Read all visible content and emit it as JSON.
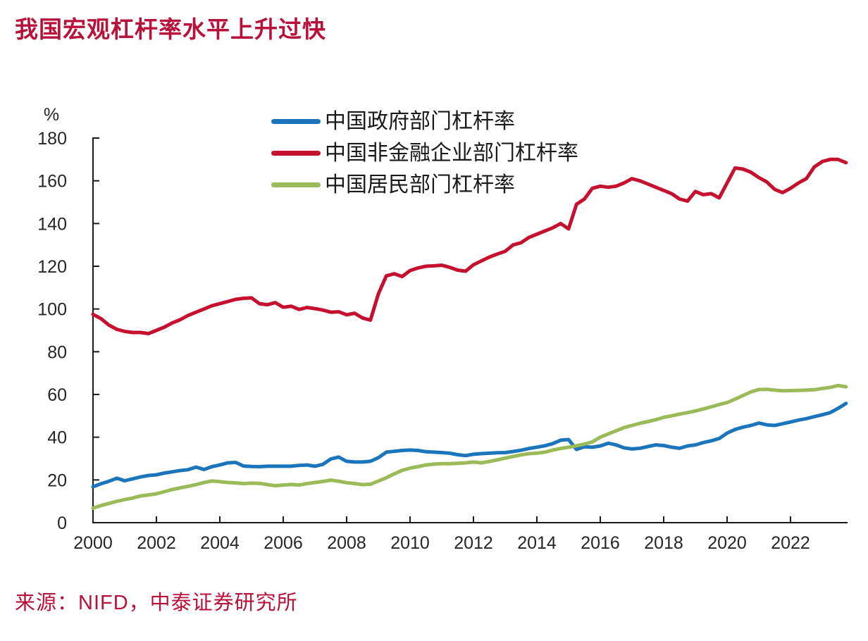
{
  "title": "我国宏观杠杆率水平上升过快",
  "source": "来源：NIFD，中泰证券研究所",
  "colors": {
    "title": "#B8123A",
    "source": "#B8123A",
    "axis": "#1a1a1a",
    "tick_label": "#262626",
    "legend_text": "#1a1a1a",
    "background": "#ffffff"
  },
  "chart_data": {
    "type": "line",
    "title": "我国宏观杠杆率水平上升过快",
    "xlabel": "",
    "ylabel": "%",
    "grid": false,
    "legend_position": "top-center",
    "ylim": [
      0,
      180
    ],
    "xlim": [
      2000,
      2023.75
    ],
    "y_ticks": [
      0,
      20,
      40,
      60,
      80,
      100,
      120,
      140,
      160,
      180
    ],
    "x_ticks": [
      2000,
      2002,
      2004,
      2006,
      2008,
      2010,
      2012,
      2014,
      2016,
      2018,
      2020,
      2022
    ],
    "x_start": 2000,
    "x_step": 0.25,
    "x_unit": "year (quarterly)",
    "series": [
      {
        "name": "中国政府部门杠杆率",
        "color": "#1B75BC",
        "values": [
          16.8,
          18.2,
          19.4,
          20.8,
          19.6,
          20.5,
          21.4,
          22.1,
          22.4,
          23.2,
          23.8,
          24.4,
          24.8,
          26.0,
          24.9,
          26.2,
          27.0,
          28.0,
          28.2,
          26.5,
          26.3,
          26.2,
          26.4,
          26.4,
          26.4,
          26.4,
          26.8,
          27.0,
          26.4,
          27.3,
          29.8,
          30.7,
          28.7,
          28.4,
          28.4,
          28.7,
          30.4,
          33.0,
          33.4,
          33.8,
          34.0,
          33.8,
          33.2,
          33.0,
          32.8,
          32.5,
          31.8,
          31.4,
          32.0,
          32.3,
          32.5,
          32.7,
          32.8,
          33.3,
          33.9,
          34.7,
          35.3,
          36.0,
          37.0,
          38.6,
          38.9,
          34.3,
          35.5,
          35.3,
          35.9,
          37.2,
          36.4,
          35.0,
          34.5,
          34.8,
          35.6,
          36.4,
          36.1,
          35.3,
          34.8,
          35.9,
          36.4,
          37.5,
          38.3,
          39.4,
          41.9,
          43.6,
          44.7,
          45.5,
          46.6,
          45.8,
          45.5,
          46.3,
          47.1,
          48.0,
          48.7,
          49.6,
          50.5,
          51.5,
          53.5,
          55.8
        ]
      },
      {
        "name": "中国非金融企业部门杠杆率",
        "color": "#C5112F",
        "values": [
          97.5,
          95.5,
          92.5,
          90.5,
          89.5,
          89.0,
          89.0,
          88.5,
          90.0,
          91.5,
          93.5,
          95.0,
          97.0,
          98.5,
          100.0,
          101.5,
          102.5,
          103.5,
          104.5,
          105.0,
          105.2,
          102.5,
          102.0,
          103.0,
          100.8,
          101.3,
          99.8,
          100.7,
          100.2,
          99.5,
          98.5,
          98.7,
          97.3,
          98.0,
          95.8,
          94.8,
          107.0,
          115.5,
          116.5,
          115.2,
          118.0,
          119.2,
          120.0,
          120.2,
          120.5,
          119.5,
          118.2,
          117.7,
          120.7,
          122.5,
          124.3,
          125.7,
          127.0,
          130.0,
          131.0,
          133.5,
          135.0,
          136.5,
          138.0,
          140.0,
          137.5,
          149.0,
          151.5,
          156.5,
          157.5,
          157.0,
          157.5,
          159.0,
          161.0,
          160.0,
          158.5,
          157.0,
          155.5,
          154.0,
          151.5,
          150.5,
          155.0,
          153.5,
          154.0,
          152.0,
          159.0,
          166.0,
          165.5,
          164.0,
          161.5,
          159.5,
          156.0,
          154.5,
          156.5,
          159.0,
          161.0,
          166.5,
          169.0,
          170.0,
          170.0,
          168.5
        ]
      },
      {
        "name": "中国居民部门杠杆率",
        "color": "#9BBA58",
        "values": [
          6.8,
          8.0,
          9.0,
          10.0,
          10.8,
          11.5,
          12.5,
          13.0,
          13.5,
          14.5,
          15.5,
          16.3,
          17.0,
          17.8,
          18.8,
          19.5,
          19.2,
          18.8,
          18.6,
          18.3,
          18.5,
          18.4,
          17.8,
          17.3,
          17.6,
          17.9,
          17.6,
          18.3,
          18.8,
          19.3,
          19.9,
          19.4,
          18.7,
          18.3,
          17.8,
          18.0,
          19.5,
          21.0,
          22.8,
          24.5,
          25.5,
          26.2,
          27.0,
          27.4,
          27.6,
          27.6,
          27.8,
          28.0,
          28.4,
          28.0,
          28.6,
          29.4,
          30.2,
          31.0,
          31.7,
          32.3,
          32.5,
          33.0,
          34.0,
          34.7,
          35.3,
          36.0,
          36.8,
          37.8,
          40.0,
          41.5,
          43.0,
          44.5,
          45.5,
          46.5,
          47.3,
          48.2,
          49.3,
          50.0,
          50.8,
          51.5,
          52.3,
          53.2,
          54.2,
          55.3,
          56.2,
          57.8,
          59.5,
          61.2,
          62.3,
          62.4,
          62.0,
          61.7,
          61.8,
          61.9,
          62.0,
          62.2,
          62.8,
          63.3,
          64.2,
          63.6
        ]
      }
    ]
  }
}
